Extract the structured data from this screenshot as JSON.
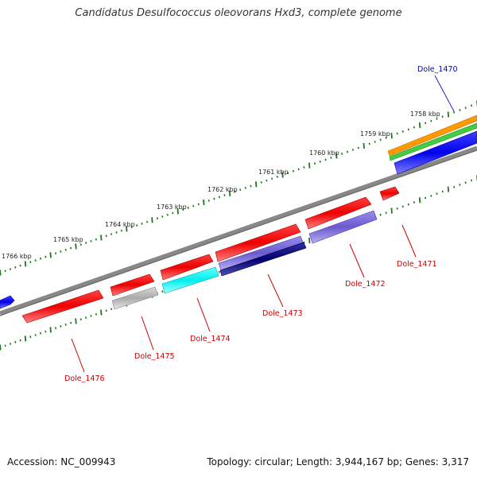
{
  "title": "Candidatus Desulfococcus oleovorans Hxd3, complete genome",
  "accession_text": "Accession: NC_009943",
  "summary_text": "Topology: circular; Length: 3,944,167 bp; Genes: 3,317",
  "scale_ticks": [
    "1758 kbp",
    "1759 kbp",
    "1760 kbp",
    "1761 kbp",
    "1762 kbp",
    "1763 kbp",
    "1764 kbp",
    "1765 kbp",
    "1766 kbp"
  ],
  "genes": [
    {
      "label": "Dole_1470",
      "color": "#0000cc"
    },
    {
      "label": "Dole_1471",
      "color": "#cc0000"
    },
    {
      "label": "Dole_1472",
      "color": "#cc0000"
    },
    {
      "label": "Dole_1473",
      "color": "#cc0000"
    },
    {
      "label": "Dole_1474",
      "color": "#cc0000"
    },
    {
      "label": "Dole_1475",
      "color": "#cc0000"
    },
    {
      "label": "Dole_1476",
      "color": "#cc0000"
    }
  ],
  "colors": {
    "cds_forward": "#ff0000",
    "cds_reverse_highlight": "#ff0000",
    "backbone": "#888888",
    "tick": "#1a7a1a",
    "blue_feature": "#0000ff",
    "orange_feature": "#ff8c00",
    "green_feature": "#33cc33",
    "cyan_feature": "#00ffff",
    "slate_feature": "#7b68ee",
    "navy_feature": "#000080",
    "gray_feature": "#bbbbbb"
  }
}
